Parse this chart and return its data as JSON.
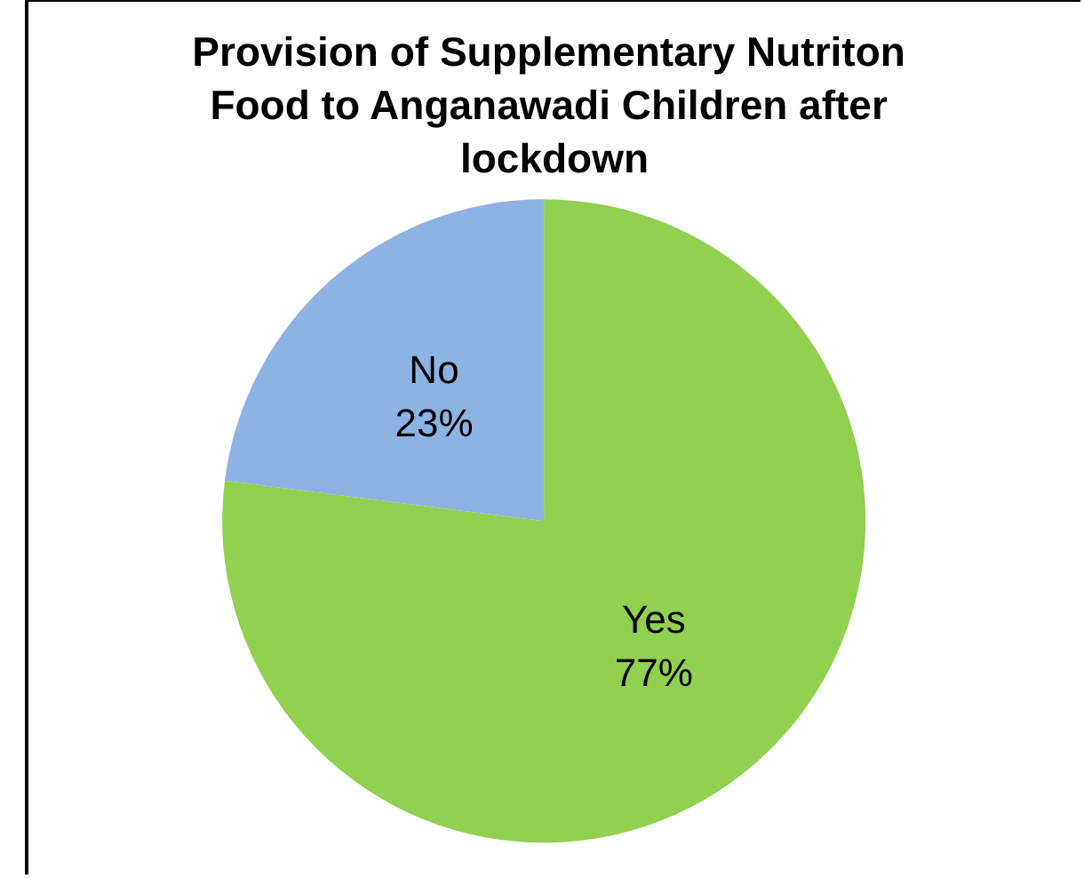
{
  "chart_data": {
    "type": "pie",
    "title": "Provision of Supplementary Nutriton Food to Anganawadi Children after lockdown",
    "categories": [
      "Yes",
      "No"
    ],
    "values": [
      77,
      23
    ],
    "value_labels": [
      "77%",
      "23%"
    ],
    "colors": [
      "#92d050",
      "#8db3e2"
    ],
    "legend": false
  }
}
